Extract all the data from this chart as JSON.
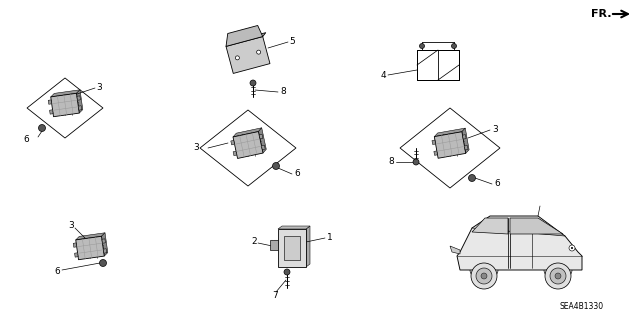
{
  "bg_color": "#ffffff",
  "diagram_code": "SEA4B1330",
  "fr_label": "FR.",
  "label_color": "#000000",
  "line_color": "#000000",
  "gray_fill": "#aaaaaa",
  "light_gray": "#cccccc",
  "dark_gray": "#555555",
  "figsize": [
    6.4,
    3.19
  ],
  "dpi": 100,
  "lw_main": 0.6,
  "lw_leader": 0.5,
  "font_size": 6.5
}
